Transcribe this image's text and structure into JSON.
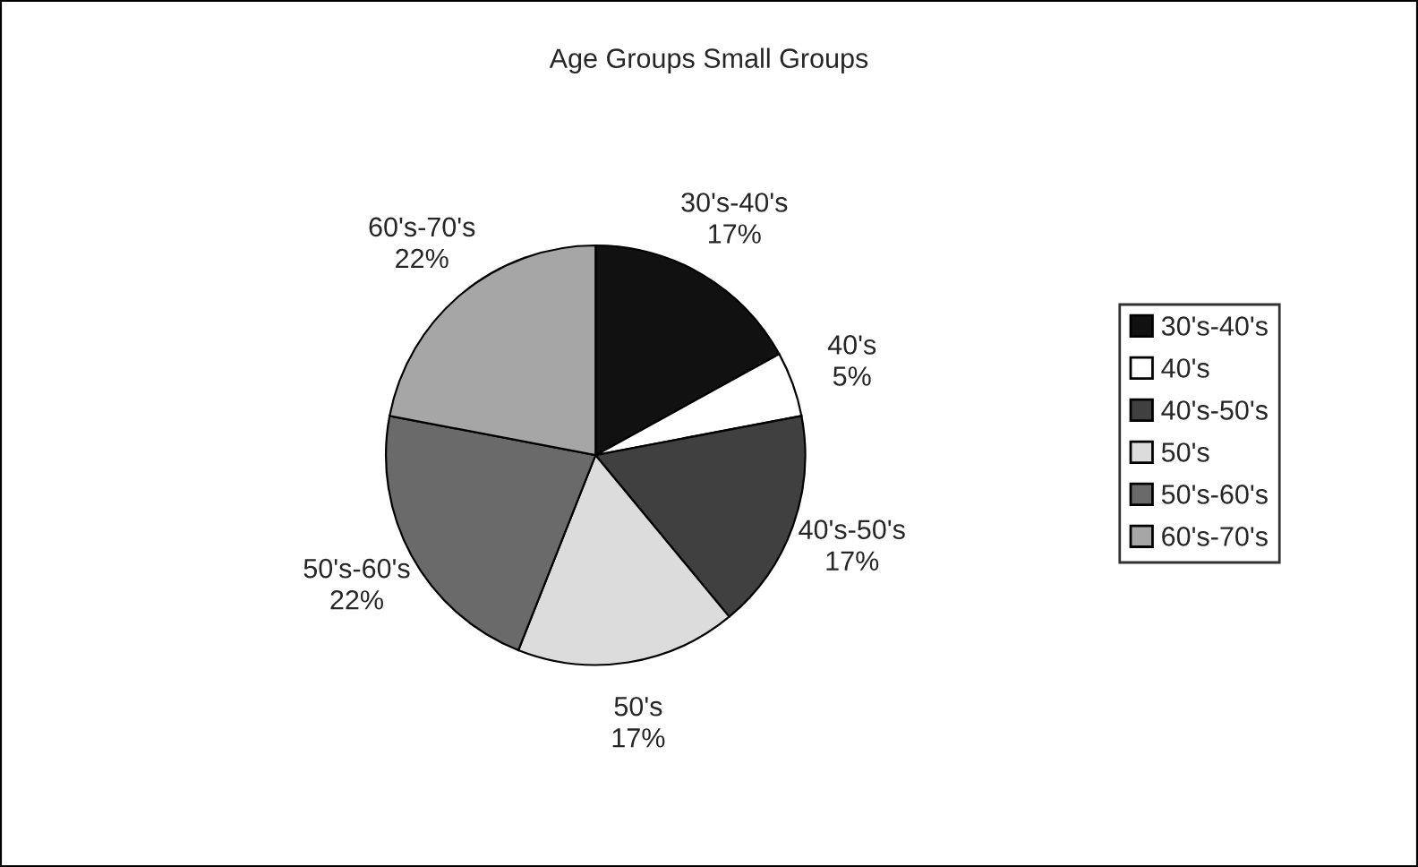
{
  "chart_data": {
    "type": "pie",
    "title": "Age Groups Small Groups",
    "categories": [
      "30's-40's",
      "40's",
      "40's-50's",
      "50's",
      "50's-60's",
      "60's-70's"
    ],
    "values": [
      17,
      5,
      17,
      17,
      22,
      22
    ],
    "value_labels": [
      "17%",
      "5%",
      "17%",
      "17%",
      "22%",
      "22%"
    ],
    "colors": [
      "#111111",
      "#ffffff",
      "#404040",
      "#dcdcdc",
      "#6a6a6a",
      "#a6a6a6"
    ],
    "legend": "right"
  }
}
